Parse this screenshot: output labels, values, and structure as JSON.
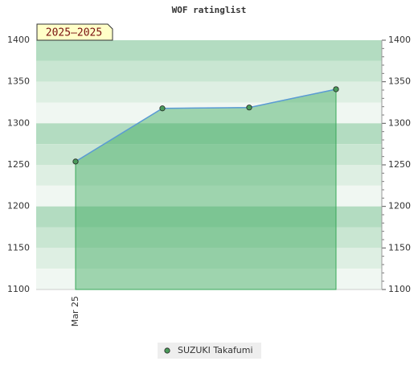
{
  "chart_data": {
    "type": "line",
    "title": "WOF ratinglist",
    "badge": "2025–2025",
    "categories": [
      "Mar 25",
      null,
      null,
      null
    ],
    "series": [
      {
        "name": "SUZUKI Takafumi",
        "color": "#3aa85a",
        "values": [
          1254,
          1318,
          1319,
          1341
        ]
      }
    ],
    "ylim": [
      1100,
      1400
    ],
    "yticks": [
      1100,
      1150,
      1200,
      1250,
      1300,
      1350,
      1400
    ],
    "grid": true
  }
}
